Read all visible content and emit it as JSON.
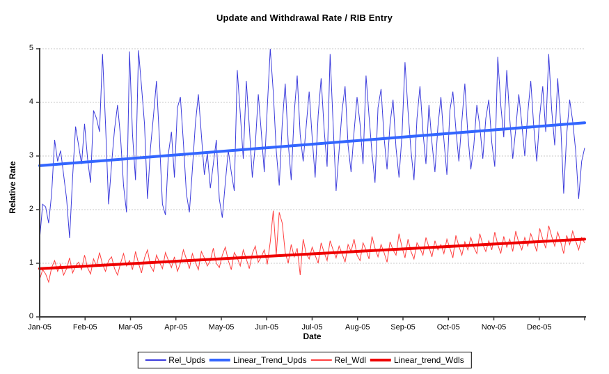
{
  "title": "Update and Withdrawal Rate / RIB Entry",
  "colors": {
    "background": "#FFFFFF",
    "axis": "#3A3A3A",
    "grid": "#C9C9C9",
    "text": "#000000",
    "rel_upds": "#3C3CDC",
    "linear_trend_upds": "#3366FF",
    "rel_wdl": "#FF4040",
    "linear_trend_wdls": "#EE0000"
  },
  "chart_data": {
    "type": "line",
    "title": "Update and Withdrawal Rate / RIB Entry",
    "xlabel": "Date",
    "ylabel": "Relative Rate",
    "ylim": [
      0,
      5
    ],
    "yticks": [
      0,
      1,
      2,
      3,
      4,
      5
    ],
    "x_tick_labels": [
      "Jan-05",
      "Feb-05",
      "Mar-05",
      "Apr-05",
      "May-05",
      "Jun-05",
      "Jul-05",
      "Aug-05",
      "Sep-05",
      "Oct-05",
      "Nov-05",
      "Dec-05"
    ],
    "x_months": 12,
    "grid": "horizontal-dotted",
    "legend_position": "bottom-center",
    "series": [
      {
        "name": "Rel_Upds",
        "kind": "noisy",
        "color": "#3C3CDC",
        "width": 1,
        "values": [
          1.45,
          2.1,
          2.05,
          1.75,
          2.3,
          3.3,
          2.9,
          3.1,
          2.65,
          2.2,
          1.47,
          2.6,
          3.55,
          3.2,
          2.85,
          3.6,
          2.95,
          2.5,
          3.85,
          3.7,
          3.45,
          4.9,
          3.6,
          2.1,
          2.85,
          3.5,
          3.95,
          3.35,
          2.45,
          1.95,
          4.95,
          3.4,
          2.55,
          4.97,
          4.3,
          3.6,
          2.2,
          3.15,
          3.75,
          4.4,
          3.3,
          2.1,
          1.9,
          3.05,
          3.45,
          2.6,
          3.9,
          4.1,
          3.25,
          2.3,
          1.95,
          2.75,
          3.6,
          4.15,
          3.4,
          2.65,
          3.05,
          2.4,
          2.85,
          3.3,
          2.2,
          1.85,
          2.5,
          3.1,
          2.7,
          2.35,
          4.6,
          3.8,
          2.95,
          4.4,
          3.55,
          2.6,
          3.2,
          4.15,
          3.45,
          2.7,
          3.9,
          5.0,
          4.2,
          3.1,
          2.45,
          3.6,
          4.35,
          3.25,
          2.55,
          3.8,
          4.5,
          3.4,
          2.9,
          3.55,
          4.2,
          3.35,
          2.6,
          3.75,
          4.45,
          3.5,
          2.8,
          4.9,
          3.6,
          2.35,
          3.1,
          3.85,
          4.3,
          3.2,
          2.7,
          3.45,
          4.1,
          3.6,
          2.85,
          4.5,
          3.75,
          3.05,
          2.5,
          3.9,
          4.25,
          3.35,
          2.75,
          3.6,
          4.05,
          3.15,
          2.6,
          3.4,
          4.75,
          3.85,
          3.1,
          2.55,
          3.7,
          4.3,
          3.45,
          2.85,
          3.95,
          3.25,
          2.7,
          3.55,
          4.1,
          3.3,
          2.65,
          3.85,
          4.2,
          3.5,
          2.9,
          3.65,
          4.35,
          3.4,
          2.75,
          3.2,
          3.95,
          3.55,
          2.95,
          3.7,
          4.05,
          3.25,
          2.8,
          4.85,
          3.95,
          3.35,
          4.6,
          3.7,
          2.95,
          3.5,
          4.15,
          3.6,
          3.0,
          3.8,
          4.4,
          3.55,
          2.9,
          3.75,
          4.3,
          3.45,
          4.9,
          3.85,
          3.2,
          4.45,
          3.6,
          2.3,
          3.4,
          4.05,
          3.65,
          3.1,
          2.2,
          2.9,
          3.15
        ]
      },
      {
        "name": "Linear_Trend_Upds",
        "kind": "trend",
        "color": "#3366FF",
        "width": 4,
        "values": [
          2.82,
          3.62
        ]
      },
      {
        "name": "Rel_Wdl",
        "kind": "noisy",
        "color": "#FF4040",
        "width": 1,
        "values": [
          0.7,
          0.88,
          0.8,
          0.65,
          0.92,
          1.05,
          0.85,
          0.98,
          0.78,
          0.9,
          1.1,
          0.82,
          0.95,
          1.02,
          0.88,
          1.15,
          0.92,
          0.8,
          1.08,
          0.95,
          1.2,
          0.98,
          0.85,
          1.05,
          1.12,
          0.9,
          0.78,
          1.0,
          1.18,
          0.95,
          1.05,
          0.88,
          1.22,
          1.0,
          0.82,
          1.1,
          1.25,
          0.95,
          0.85,
          1.15,
          1.02,
          0.9,
          1.2,
          1.05,
          0.92,
          1.12,
          0.85,
          1.0,
          1.25,
          1.08,
          0.9,
          1.18,
          1.02,
          0.88,
          1.22,
          1.1,
          0.95,
          1.05,
          1.28,
          1.0,
          0.92,
          1.15,
          1.3,
          1.05,
          0.88,
          1.2,
          1.1,
          0.95,
          1.25,
          1.08,
          0.9,
          1.18,
          1.32,
          1.02,
          1.12,
          1.25,
          0.98,
          1.4,
          1.98,
          1.15,
          1.95,
          1.75,
          1.2,
          1.0,
          1.35,
          1.12,
          1.28,
          0.78,
          1.45,
          1.18,
          1.08,
          1.3,
          1.15,
          1.0,
          1.38,
          1.2,
          1.05,
          1.42,
          1.25,
          1.1,
          1.32,
          1.18,
          1.02,
          1.35,
          1.22,
          1.45,
          1.15,
          1.05,
          1.38,
          1.25,
          1.08,
          1.5,
          1.28,
          1.12,
          1.35,
          1.2,
          1.02,
          1.4,
          1.25,
          1.15,
          1.55,
          1.3,
          1.1,
          1.45,
          1.22,
          1.08,
          1.38,
          1.28,
          1.15,
          1.48,
          1.3,
          1.12,
          1.42,
          1.25,
          1.35,
          1.18,
          1.45,
          1.28,
          1.1,
          1.52,
          1.32,
          1.15,
          1.4,
          1.25,
          1.48,
          1.3,
          1.18,
          1.55,
          1.35,
          1.22,
          1.42,
          1.25,
          1.58,
          1.35,
          1.18,
          1.5,
          1.3,
          1.45,
          1.22,
          1.6,
          1.38,
          1.25,
          1.48,
          1.32,
          1.55,
          1.4,
          1.22,
          1.65,
          1.45,
          1.28,
          1.7,
          1.5,
          1.32,
          1.58,
          1.4,
          1.18,
          1.52,
          1.35,
          1.6,
          1.42,
          1.25,
          1.48,
          1.38
        ]
      },
      {
        "name": "Linear_trend_Wdls",
        "kind": "trend",
        "color": "#EE0000",
        "width": 4,
        "values": [
          0.9,
          1.45
        ]
      }
    ]
  }
}
